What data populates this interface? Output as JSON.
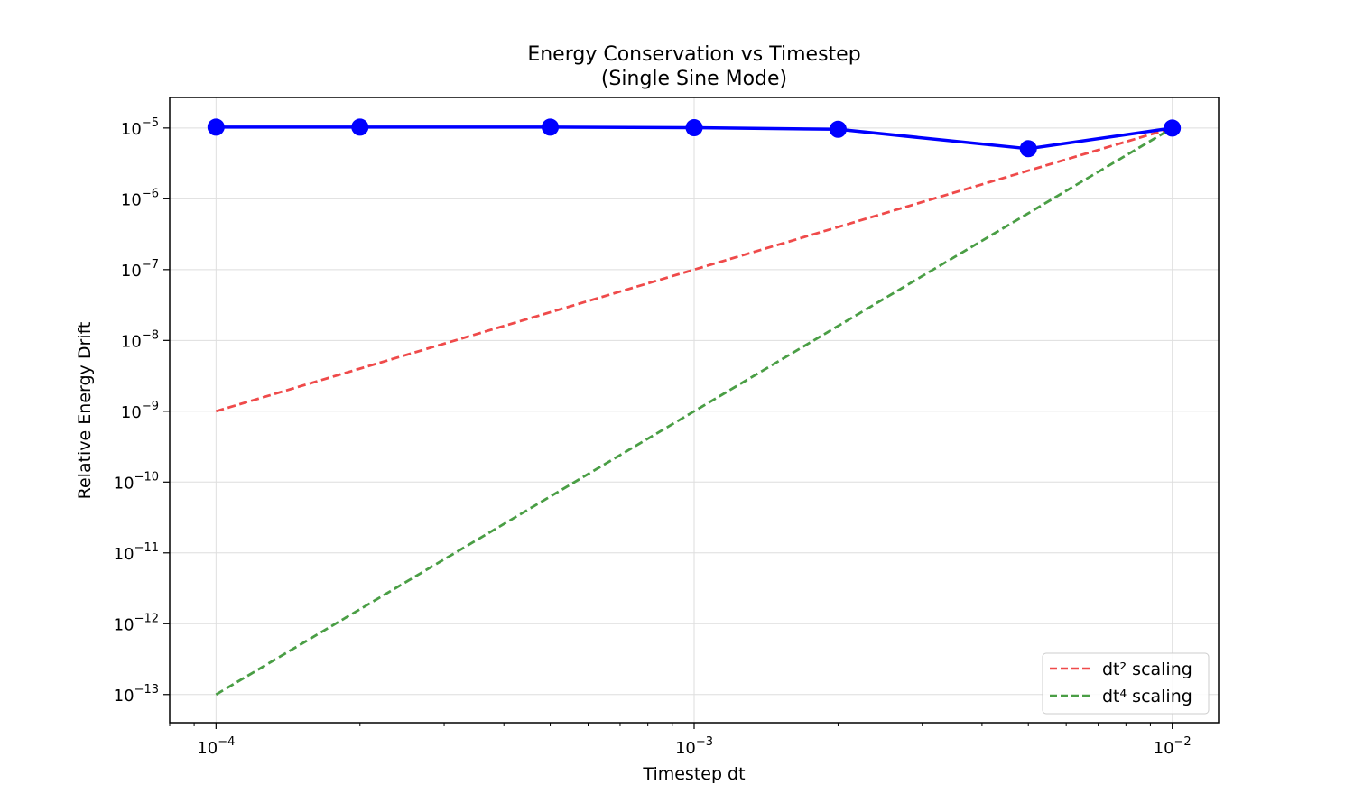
{
  "chart_data": {
    "type": "line",
    "title": "Energy Conservation vs Timestep",
    "subtitle": "(Single Sine Mode)",
    "xlabel": "Timestep dt",
    "ylabel": "Relative Energy Drift",
    "xscale": "log",
    "yscale": "log",
    "xlim": [
      8e-05,
      0.0125
    ],
    "ylim": [
      4e-14,
      2.7e-05
    ],
    "grid": true,
    "legend_position": "bottom-right",
    "x_ticks": [
      {
        "base": "10",
        "exp": "−4",
        "value": 0.0001
      },
      {
        "base": "10",
        "exp": "−3",
        "value": 0.001
      },
      {
        "base": "10",
        "exp": "−2",
        "value": 0.01
      }
    ],
    "y_ticks": [
      {
        "base": "10",
        "exp": "−5",
        "value": 1e-05
      },
      {
        "base": "10",
        "exp": "−6",
        "value": 1e-06
      },
      {
        "base": "10",
        "exp": "−7",
        "value": 1e-07
      },
      {
        "base": "10",
        "exp": "−8",
        "value": 1e-08
      },
      {
        "base": "10",
        "exp": "−9",
        "value": 1e-09
      },
      {
        "base": "10",
        "exp": "−10",
        "value": 1e-10
      },
      {
        "base": "10",
        "exp": "−11",
        "value": 1e-11
      },
      {
        "base": "10",
        "exp": "−12",
        "value": 1e-12
      },
      {
        "base": "10",
        "exp": "−13",
        "value": 1e-13
      }
    ],
    "series": [
      {
        "color": "#0000ff",
        "style": "solid",
        "marker": "circle",
        "x": [
          0.0001,
          0.0002,
          0.0005,
          0.001,
          0.002,
          0.005,
          0.01
        ],
        "y": [
          1.03e-05,
          1.03e-05,
          1.03e-05,
          1.01e-05,
          9.6e-06,
          5.1e-06,
          1e-05
        ]
      },
      {
        "name": "dt² scaling",
        "color": "#ef4a4a",
        "style": "dashed",
        "x": [
          0.0001,
          0.01
        ],
        "y": [
          1e-09,
          1e-05
        ]
      },
      {
        "name": "dt⁴ scaling",
        "color": "#4a9e45",
        "style": "dashed",
        "x": [
          0.0001,
          0.01
        ],
        "y": [
          1e-13,
          1e-05
        ]
      }
    ]
  }
}
